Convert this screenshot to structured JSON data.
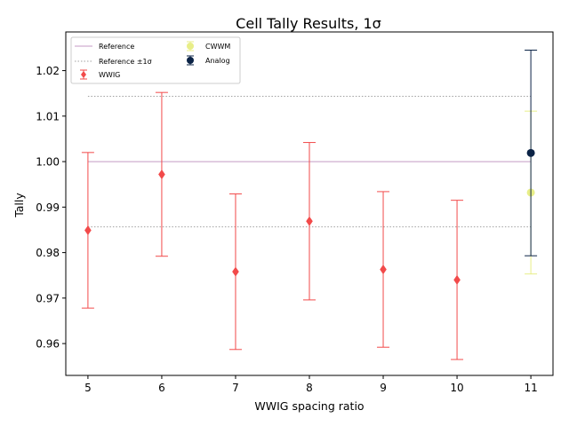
{
  "chart_data": {
    "type": "scatter",
    "title": "Cell Tally Results, 1σ",
    "xlabel": "WWIG spacing ratio",
    "ylabel": "Tally",
    "xlim": [
      4.7,
      11.3
    ],
    "ylim": [
      0.953,
      1.0285
    ],
    "xticks": [
      5,
      6,
      7,
      8,
      9,
      10,
      11
    ],
    "yticks": [
      0.96,
      0.97,
      0.98,
      0.99,
      1.0,
      1.01,
      1.02
    ],
    "ytick_labels": [
      "0.96",
      "0.97",
      "0.98",
      "0.99",
      "1.00",
      "1.01",
      "1.02"
    ],
    "grid": false,
    "legend_position": "top-left",
    "reference": {
      "name": "Reference",
      "value": 1.0,
      "x_range": [
        5,
        11
      ],
      "color": "#c49ac4"
    },
    "reference_band": {
      "name": "Reference ±1σ",
      "values": [
        0.98565,
        1.01435
      ],
      "x_range": [
        5,
        11
      ],
      "color": "#a0a0a0"
    },
    "series": [
      {
        "name": "WWIG",
        "color": "#f24a4a",
        "marker": "diamond",
        "points": [
          {
            "x": 5,
            "y": 0.9849,
            "err": 0.0171
          },
          {
            "x": 6,
            "y": 0.9972,
            "err": 0.018
          },
          {
            "x": 7,
            "y": 0.9758,
            "err": 0.0171
          },
          {
            "x": 8,
            "y": 0.9869,
            "err": 0.0173
          },
          {
            "x": 9,
            "y": 0.9763,
            "err": 0.0171
          },
          {
            "x": 10,
            "y": 0.974,
            "err": 0.0175
          }
        ]
      },
      {
        "name": "CWWM",
        "color": "#e8ee88",
        "marker": "circle",
        "points": [
          {
            "x": 11,
            "y": 0.9932,
            "err": 0.0179
          }
        ]
      },
      {
        "name": "Analog",
        "color": "#0b2346",
        "marker": "circle",
        "points": [
          {
            "x": 11,
            "y": 1.0019,
            "err": 0.0226
          }
        ]
      }
    ]
  }
}
